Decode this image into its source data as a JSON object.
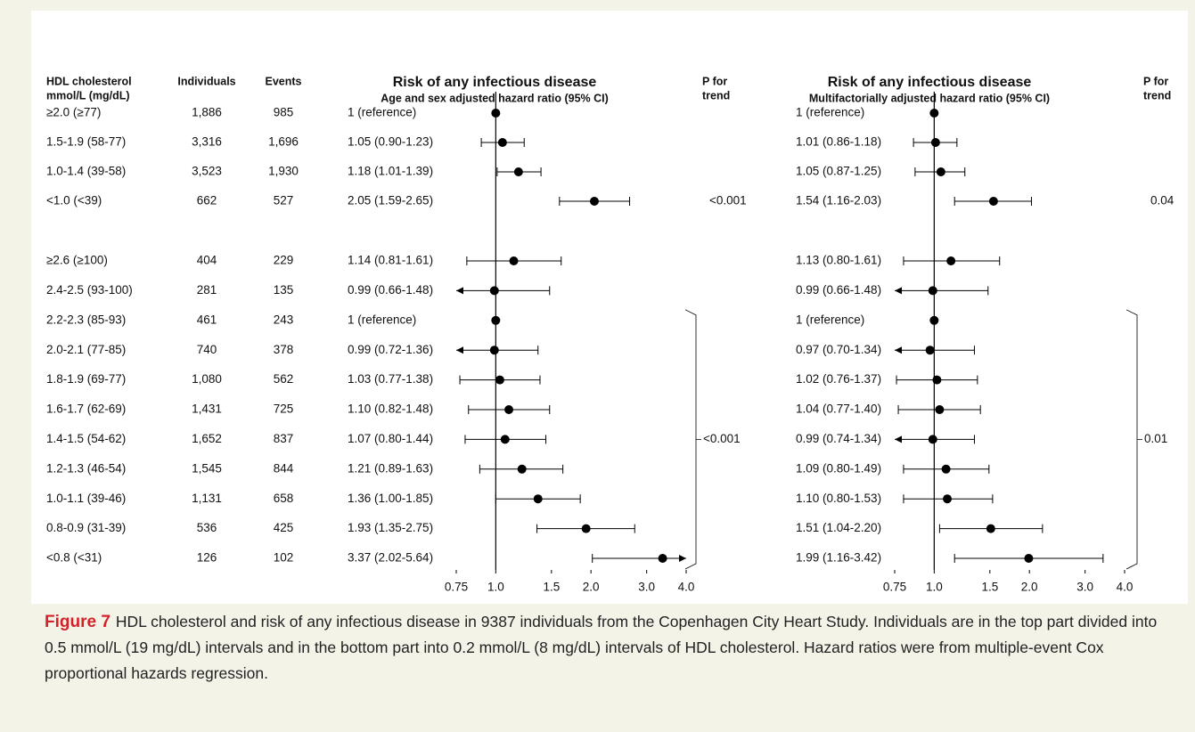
{
  "table": {
    "header": [
      [
        "HDL cholesterol",
        "mmol/L (mg/dL)"
      ],
      [
        "Individuals"
      ],
      [
        "Events"
      ]
    ],
    "rows": [
      [
        "≥2.0 (≥77)",
        "1,886",
        "985"
      ],
      [
        "1.5-1.9 (58-77)",
        "3,316",
        "1,696"
      ],
      [
        "1.0-1.4 (39-58)",
        "3,523",
        "1,930"
      ],
      [
        "<1.0 (<39)",
        "662",
        "527"
      ],
      [
        "≥2.6 (≥100)",
        "404",
        "229"
      ],
      [
        "2.4-2.5 (93-100)",
        "281",
        "135"
      ],
      [
        "2.2-2.3 (85-93)",
        "461",
        "243"
      ],
      [
        "2.0-2.1 (77-85)",
        "740",
        "378"
      ],
      [
        "1.8-1.9 (69-77)",
        "1,080",
        "562"
      ],
      [
        "1.6-1.7 (62-69)",
        "1,431",
        "725"
      ],
      [
        "1.4-1.5 (54-62)",
        "1,652",
        "837"
      ],
      [
        "1.2-1.3 (46-54)",
        "1,545",
        "844"
      ],
      [
        "1.0-1.1 (39-46)",
        "1,131",
        "658"
      ],
      [
        "0.8-0.9 (31-39)",
        "536",
        "425"
      ],
      [
        "<0.8 (<31)",
        "126",
        "102"
      ]
    ]
  },
  "chart_data": [
    {
      "type": "forest",
      "title": "Risk of any infectious disease",
      "subtitle": "Age and sex adjusted hazard ratio (95% CI)",
      "p_header": [
        "P for",
        "trend"
      ],
      "p_trend": [
        "<0.001",
        "<0.001"
      ],
      "xlabel": "Hazard ratio (95% CI)",
      "log_x": true,
      "color": "#000000",
      "xlim": [
        0.75,
        4
      ],
      "xticks": [
        0.75,
        {
          "value": 1,
          "label": "1.0"
        },
        1.5,
        {
          "value": 2,
          "label": "2.0"
        },
        {
          "value": 3,
          "label": "3.0"
        },
        {
          "value": 4,
          "label": "4.0"
        }
      ],
      "values": [
        1,
        1.05,
        1.18,
        2.05,
        1.14,
        0.99,
        1,
        0.99,
        1.03,
        1.1,
        1.07,
        1.21,
        1.36,
        1.93,
        3.37
      ],
      "lower": [
        null,
        0.9,
        1.01,
        1.59,
        0.81,
        0.66,
        null,
        0.72,
        0.77,
        0.82,
        0.8,
        0.89,
        1.0,
        1.35,
        2.02
      ],
      "upper": [
        null,
        1.23,
        1.39,
        2.65,
        1.61,
        1.48,
        null,
        1.36,
        1.38,
        1.48,
        1.44,
        1.63,
        1.85,
        2.75,
        5.64
      ],
      "value_labels": [
        "1 (reference)",
        "1.05 (0.90-1.23)",
        "1.18 (1.01-1.39)",
        "2.05 (1.59-2.65)",
        "1.14 (0.81-1.61)",
        "0.99 (0.66-1.48)",
        "1 (reference)",
        "0.99 (0.72-1.36)",
        "1.03 (0.77-1.38)",
        "1.10 (0.82-1.48)",
        "1.07 (0.80-1.44)",
        "1.21 (0.89-1.63)",
        "1.36 (1.00-1.85)",
        "1.93 (1.35-2.75)",
        "3.37 (2.02-5.64)"
      ]
    },
    {
      "type": "forest",
      "title": "Risk of any infectious disease",
      "subtitle": "Multifactorially adjusted hazard ratio (95% CI)",
      "p_header": [
        "P for",
        "trend"
      ],
      "p_trend": [
        "0.04",
        "0.01"
      ],
      "xlabel": "Hazard ratio (95% CI)",
      "log_x": true,
      "color": "#000000",
      "xlim": [
        0.75,
        4
      ],
      "xticks": [
        0.75,
        {
          "value": 1,
          "label": "1.0"
        },
        1.5,
        {
          "value": 2,
          "label": "2.0"
        },
        {
          "value": 3,
          "label": "3.0"
        },
        {
          "value": 4,
          "label": "4.0"
        }
      ],
      "values": [
        1,
        1.01,
        1.05,
        1.54,
        1.13,
        0.99,
        1,
        0.97,
        1.02,
        1.04,
        0.99,
        1.09,
        1.1,
        1.51,
        1.99
      ],
      "lower": [
        null,
        0.86,
        0.87,
        1.16,
        0.8,
        0.66,
        null,
        0.7,
        0.76,
        0.77,
        0.74,
        0.8,
        0.8,
        1.04,
        1.16
      ],
      "upper": [
        null,
        1.18,
        1.25,
        2.03,
        1.61,
        1.48,
        null,
        1.34,
        1.37,
        1.4,
        1.34,
        1.49,
        1.53,
        2.2,
        3.42
      ],
      "value_labels": [
        "1 (reference)",
        "1.01 (0.86-1.18)",
        "1.05 (0.87-1.25)",
        "1.54 (1.16-2.03)",
        "1.13 (0.80-1.61)",
        "0.99 (0.66-1.48)",
        "1 (reference)",
        "0.97 (0.70-1.34)",
        "1.02 (0.76-1.37)",
        "1.04 (0.77-1.40)",
        "0.99 (0.74-1.34)",
        "1.09 (0.80-1.49)",
        "1.10 (0.80-1.53)",
        "1.51 (1.04-2.20)",
        "1.99 (1.16-3.42)"
      ]
    }
  ],
  "caption": {
    "label": "Figure 7",
    "text": "HDL cholesterol and risk of any infectious disease in 9387 individuals from the Copenhagen City Heart Study. Individuals are in the top part divided into 0.5 mmol/L (19 mg/dL) intervals and in the bottom part into 0.2 mmol/L (8 mg/dL) intervals of HDL cholesterol. Hazard ratios were from multiple-event Cox proportional hazards regression."
  }
}
